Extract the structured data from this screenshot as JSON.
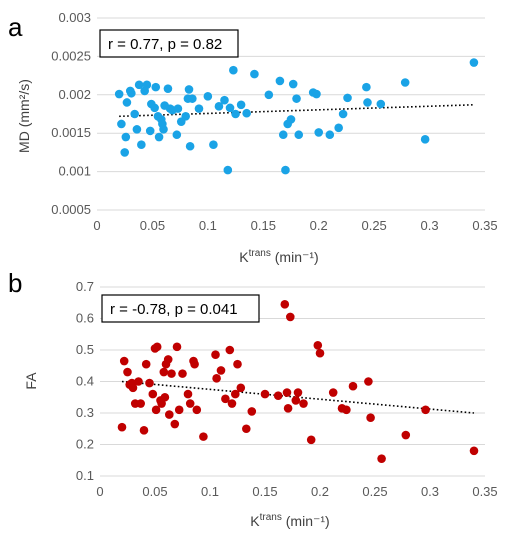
{
  "chart_data": [
    {
      "type": "scatter",
      "panel_label": "a",
      "ylabel": "MD (mm²/s)",
      "xlabel": {
        "base": "K",
        "sup": "trans",
        "unit": " (min⁻¹)"
      },
      "annotation": "r = 0.77, p = 0.82",
      "color": "#1aa3e6",
      "xlim": [
        0,
        0.35
      ],
      "ylim": [
        0.0005,
        0.003
      ],
      "xticks": [
        "0",
        "0.05",
        "0.1",
        "0.15",
        "0.2",
        "0.25",
        "0.3",
        "0.35"
      ],
      "yticks": [
        "0.0005",
        "0.001",
        "0.0015",
        "0.002",
        "0.0025",
        "0.003"
      ],
      "grid": true,
      "trendline": {
        "x": [
          0.02,
          0.34
        ],
        "y": [
          0.00172,
          0.00187
        ]
      },
      "points": [
        [
          0.02,
          0.00201
        ],
        [
          0.022,
          0.00162
        ],
        [
          0.025,
          0.00125
        ],
        [
          0.026,
          0.00145
        ],
        [
          0.027,
          0.0019
        ],
        [
          0.03,
          0.00205
        ],
        [
          0.031,
          0.00202
        ],
        [
          0.034,
          0.00175
        ],
        [
          0.036,
          0.00155
        ],
        [
          0.038,
          0.00213
        ],
        [
          0.04,
          0.00135
        ],
        [
          0.043,
          0.00205
        ],
        [
          0.045,
          0.00213
        ],
        [
          0.048,
          0.00153
        ],
        [
          0.049,
          0.00188
        ],
        [
          0.052,
          0.00183
        ],
        [
          0.053,
          0.0021
        ],
        [
          0.055,
          0.00172
        ],
        [
          0.056,
          0.00145
        ],
        [
          0.058,
          0.00168
        ],
        [
          0.059,
          0.00162
        ],
        [
          0.06,
          0.00155
        ],
        [
          0.061,
          0.00186
        ],
        [
          0.064,
          0.00208
        ],
        [
          0.066,
          0.00182
        ],
        [
          0.068,
          0.0018
        ],
        [
          0.072,
          0.00148
        ],
        [
          0.073,
          0.00182
        ],
        [
          0.076,
          0.00165
        ],
        [
          0.08,
          0.00172
        ],
        [
          0.082,
          0.00195
        ],
        [
          0.083,
          0.00207
        ],
        [
          0.084,
          0.00133
        ],
        [
          0.086,
          0.00195
        ],
        [
          0.092,
          0.00182
        ],
        [
          0.1,
          0.00198
        ],
        [
          0.105,
          0.00135
        ],
        [
          0.11,
          0.00185
        ],
        [
          0.115,
          0.00193
        ],
        [
          0.118,
          0.00102
        ],
        [
          0.12,
          0.00183
        ],
        [
          0.123,
          0.00232
        ],
        [
          0.125,
          0.00175
        ],
        [
          0.13,
          0.00187
        ],
        [
          0.135,
          0.00176
        ],
        [
          0.142,
          0.00227
        ],
        [
          0.155,
          0.002
        ],
        [
          0.165,
          0.00218
        ],
        [
          0.168,
          0.00148
        ],
        [
          0.17,
          0.00102
        ],
        [
          0.172,
          0.00162
        ],
        [
          0.175,
          0.00168
        ],
        [
          0.177,
          0.00214
        ],
        [
          0.18,
          0.00195
        ],
        [
          0.182,
          0.00148
        ],
        [
          0.195,
          0.00203
        ],
        [
          0.198,
          0.00201
        ],
        [
          0.2,
          0.00151
        ],
        [
          0.21,
          0.00148
        ],
        [
          0.218,
          0.00157
        ],
        [
          0.222,
          0.00175
        ],
        [
          0.226,
          0.00196
        ],
        [
          0.243,
          0.0021
        ],
        [
          0.244,
          0.0019
        ],
        [
          0.256,
          0.00188
        ],
        [
          0.278,
          0.00216
        ],
        [
          0.296,
          0.00142
        ],
        [
          0.34,
          0.00242
        ]
      ]
    },
    {
      "type": "scatter",
      "panel_label": "b",
      "ylabel": "FA",
      "xlabel": {
        "base": "K",
        "sup": "trans",
        "unit": " (min⁻¹)"
      },
      "annotation": "r = -0.78, p = 0.041",
      "color": "#c00000",
      "xlim": [
        0,
        0.35
      ],
      "ylim": [
        0.1,
        0.7
      ],
      "xticks": [
        "0",
        "0.05",
        "0.1",
        "0.15",
        "0.2",
        "0.25",
        "0.3",
        "0.35"
      ],
      "yticks": [
        "0.1",
        "0.2",
        "0.3",
        "0.4",
        "0.5",
        "0.6",
        "0.7"
      ],
      "grid": true,
      "trendline": {
        "x": [
          0.02,
          0.34
        ],
        "y": [
          0.4,
          0.3
        ]
      },
      "points": [
        [
          0.02,
          0.255
        ],
        [
          0.022,
          0.465
        ],
        [
          0.025,
          0.43
        ],
        [
          0.027,
          0.39
        ],
        [
          0.029,
          0.395
        ],
        [
          0.03,
          0.38
        ],
        [
          0.032,
          0.33
        ],
        [
          0.035,
          0.4
        ],
        [
          0.037,
          0.33
        ],
        [
          0.04,
          0.245
        ],
        [
          0.042,
          0.455
        ],
        [
          0.045,
          0.395
        ],
        [
          0.048,
          0.36
        ],
        [
          0.05,
          0.505
        ],
        [
          0.051,
          0.31
        ],
        [
          0.052,
          0.51
        ],
        [
          0.055,
          0.34
        ],
        [
          0.056,
          0.33
        ],
        [
          0.058,
          0.43
        ],
        [
          0.059,
          0.35
        ],
        [
          0.06,
          0.455
        ],
        [
          0.062,
          0.47
        ],
        [
          0.063,
          0.295
        ],
        [
          0.065,
          0.425
        ],
        [
          0.068,
          0.265
        ],
        [
          0.07,
          0.51
        ],
        [
          0.072,
          0.31
        ],
        [
          0.075,
          0.425
        ],
        [
          0.08,
          0.36
        ],
        [
          0.082,
          0.33
        ],
        [
          0.085,
          0.465
        ],
        [
          0.086,
          0.455
        ],
        [
          0.088,
          0.31
        ],
        [
          0.094,
          0.225
        ],
        [
          0.105,
          0.485
        ],
        [
          0.106,
          0.41
        ],
        [
          0.11,
          0.435
        ],
        [
          0.114,
          0.345
        ],
        [
          0.118,
          0.5
        ],
        [
          0.12,
          0.33
        ],
        [
          0.123,
          0.36
        ],
        [
          0.125,
          0.455
        ],
        [
          0.128,
          0.38
        ],
        [
          0.133,
          0.25
        ],
        [
          0.138,
          0.305
        ],
        [
          0.15,
          0.36
        ],
        [
          0.162,
          0.355
        ],
        [
          0.168,
          0.645
        ],
        [
          0.17,
          0.365
        ],
        [
          0.171,
          0.315
        ],
        [
          0.173,
          0.605
        ],
        [
          0.178,
          0.34
        ],
        [
          0.18,
          0.365
        ],
        [
          0.185,
          0.33
        ],
        [
          0.192,
          0.215
        ],
        [
          0.198,
          0.515
        ],
        [
          0.2,
          0.49
        ],
        [
          0.212,
          0.365
        ],
        [
          0.22,
          0.315
        ],
        [
          0.224,
          0.31
        ],
        [
          0.23,
          0.385
        ],
        [
          0.244,
          0.4
        ],
        [
          0.246,
          0.285
        ],
        [
          0.256,
          0.155
        ],
        [
          0.278,
          0.23
        ],
        [
          0.296,
          0.31
        ],
        [
          0.34,
          0.18
        ]
      ]
    }
  ]
}
